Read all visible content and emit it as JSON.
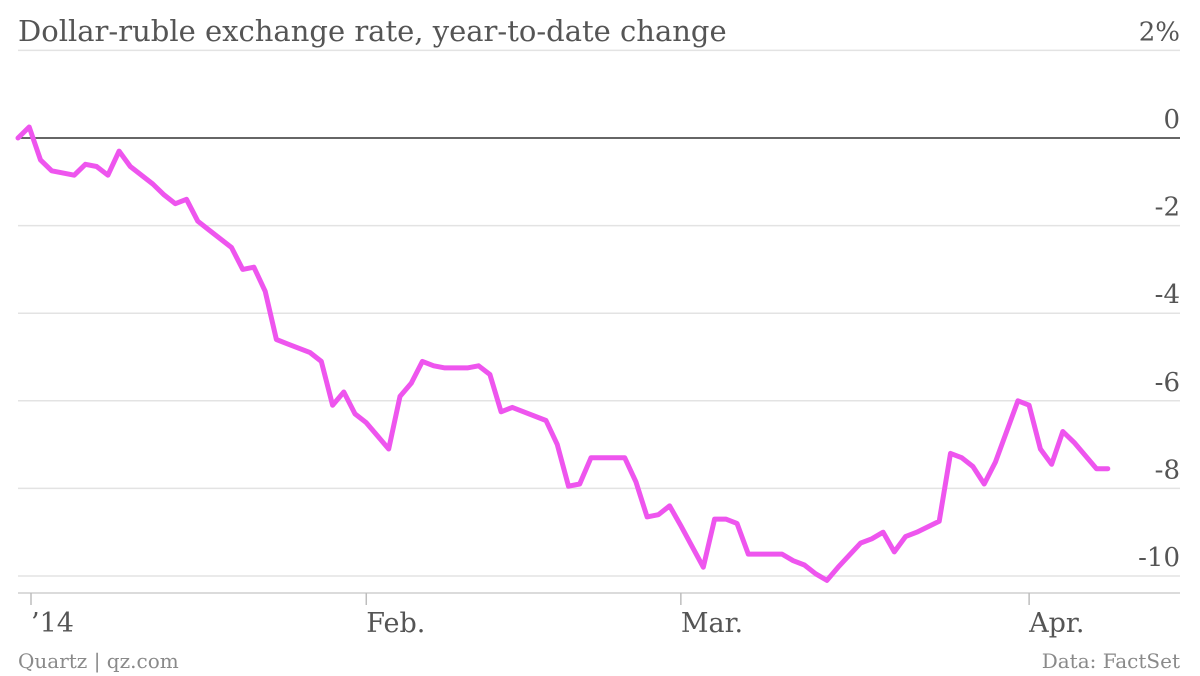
{
  "chart_data": {
    "type": "line",
    "title": "Dollar-ruble exchange rate, year-to-date change",
    "y_ticks": [
      {
        "value": 2,
        "label": "2%"
      },
      {
        "value": 0,
        "label": "0"
      },
      {
        "value": -2,
        "label": "-2"
      },
      {
        "value": -4,
        "label": "-4"
      },
      {
        "value": -6,
        "label": "-6"
      },
      {
        "value": -8,
        "label": "-8"
      },
      {
        "value": -10,
        "label": "-10"
      }
    ],
    "ylim": [
      -10.8,
      2
    ],
    "x_range": [
      "2014-01-01",
      "2014-04-09"
    ],
    "x_ticks": [
      {
        "date": "2014-01-01",
        "label": "’14"
      },
      {
        "date": "2014-02-01",
        "label": "Feb."
      },
      {
        "date": "2014-03-01",
        "label": "Mar."
      },
      {
        "date": "2014-04-01",
        "label": "Apr."
      }
    ],
    "grid": true,
    "color": "#ee55ee",
    "series": [
      {
        "x": [
          "2014-01-01",
          "2014-01-02",
          "2014-01-03",
          "2014-01-04",
          "2014-01-06",
          "2014-01-07",
          "2014-01-08",
          "2014-01-09",
          "2014-01-10",
          "2014-01-11",
          "2014-01-13",
          "2014-01-14",
          "2014-01-15",
          "2014-01-16",
          "2014-01-17",
          "2014-01-18",
          "2014-01-20",
          "2014-01-21",
          "2014-01-22",
          "2014-01-23",
          "2014-01-24",
          "2014-01-25",
          "2014-01-27",
          "2014-01-28",
          "2014-01-29",
          "2014-01-30",
          "2014-01-31",
          "2014-02-01",
          "2014-02-03",
          "2014-02-04",
          "2014-02-05",
          "2014-02-06",
          "2014-02-07",
          "2014-02-08",
          "2014-02-10",
          "2014-02-11",
          "2014-02-12",
          "2014-02-13",
          "2014-02-14",
          "2014-02-15",
          "2014-02-17",
          "2014-02-18",
          "2014-02-19",
          "2014-02-20",
          "2014-02-21",
          "2014-02-22",
          "2014-02-24",
          "2014-02-25",
          "2014-02-26",
          "2014-02-27",
          "2014-02-28",
          "2014-03-01",
          "2014-03-03",
          "2014-03-04",
          "2014-03-05",
          "2014-03-06",
          "2014-03-07",
          "2014-03-08",
          "2014-03-10",
          "2014-03-11",
          "2014-03-12",
          "2014-03-13",
          "2014-03-14",
          "2014-03-15",
          "2014-03-17",
          "2014-03-18",
          "2014-03-19",
          "2014-03-20",
          "2014-03-21",
          "2014-03-22",
          "2014-03-24",
          "2014-03-25",
          "2014-03-26",
          "2014-03-27",
          "2014-03-28",
          "2014-03-29",
          "2014-03-31",
          "2014-04-01",
          "2014-04-02",
          "2014-04-03",
          "2014-04-04",
          "2014-04-05",
          "2014-04-07",
          "2014-04-08"
        ],
        "y": [
          0.0,
          0.25,
          -0.5,
          -0.75,
          -0.85,
          -0.6,
          -0.65,
          -0.85,
          -0.3,
          -0.65,
          -1.05,
          -1.3,
          -1.5,
          -1.4,
          -1.9,
          -2.1,
          -2.5,
          -3.0,
          -2.95,
          -3.5,
          -4.6,
          -4.7,
          -4.9,
          -5.1,
          -6.1,
          -5.8,
          -6.3,
          -6.5,
          -7.1,
          -5.9,
          -5.6,
          -5.1,
          -5.2,
          -5.25,
          -5.25,
          -5.2,
          -5.4,
          -6.25,
          -6.15,
          -6.25,
          -6.45,
          -7.0,
          -7.95,
          -7.9,
          -7.3,
          -7.3,
          -7.3,
          -7.85,
          -8.65,
          -8.6,
          -8.4,
          -8.85,
          -9.8,
          -8.7,
          -8.7,
          -8.8,
          -9.5,
          -9.5,
          -9.5,
          -9.65,
          -9.75,
          -9.95,
          -10.1,
          -9.8,
          -9.25,
          -9.15,
          -9.0,
          -9.45,
          -9.1,
          -9.0,
          -8.75,
          -7.2,
          -7.3,
          -7.5,
          -7.9,
          -7.4,
          -6.0,
          -6.1,
          -7.1,
          -7.45,
          -6.7,
          -6.95,
          -7.55,
          -7.55
        ]
      }
    ]
  },
  "footer": {
    "left": "Quartz | qz.com",
    "right": "Data: FactSet"
  }
}
